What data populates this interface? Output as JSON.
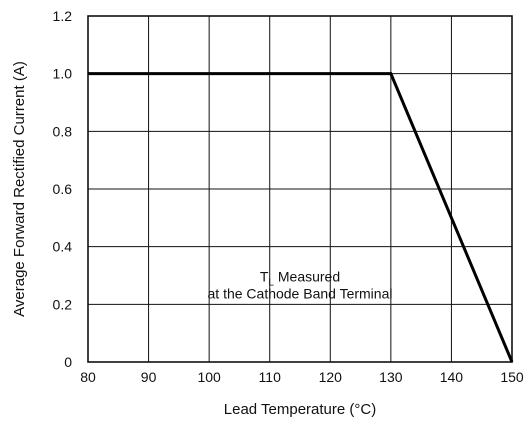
{
  "chart_data": {
    "type": "line",
    "title": "",
    "xlabel": "Lead Temperature (°C)",
    "ylabel": "Average Forward Rectified Current (A)",
    "xlim": [
      80,
      150
    ],
    "ylim": [
      0,
      1.2
    ],
    "x_ticks": [
      80,
      90,
      100,
      110,
      120,
      130,
      140,
      150
    ],
    "x_tick_labels": [
      "80",
      "90",
      "100",
      "110",
      "120",
      "130",
      "140",
      "150"
    ],
    "y_ticks": [
      0,
      0.2,
      0.4,
      0.6,
      0.8,
      1.0,
      1.2
    ],
    "y_tick_labels": [
      "0",
      "0.2",
      "0.4",
      "0.6",
      "0.8",
      "1.0",
      "1.2"
    ],
    "grid": true,
    "legend": "none",
    "series": [
      {
        "x": [
          80,
          130,
          150
        ],
        "y": [
          1.0,
          1.0,
          0
        ]
      }
    ],
    "annotation": {
      "symbol": "T",
      "subscript": "L",
      "line1": " Measured",
      "line2": "at the Cathode Band Terminal",
      "x": 115,
      "y": 0.28
    }
  }
}
